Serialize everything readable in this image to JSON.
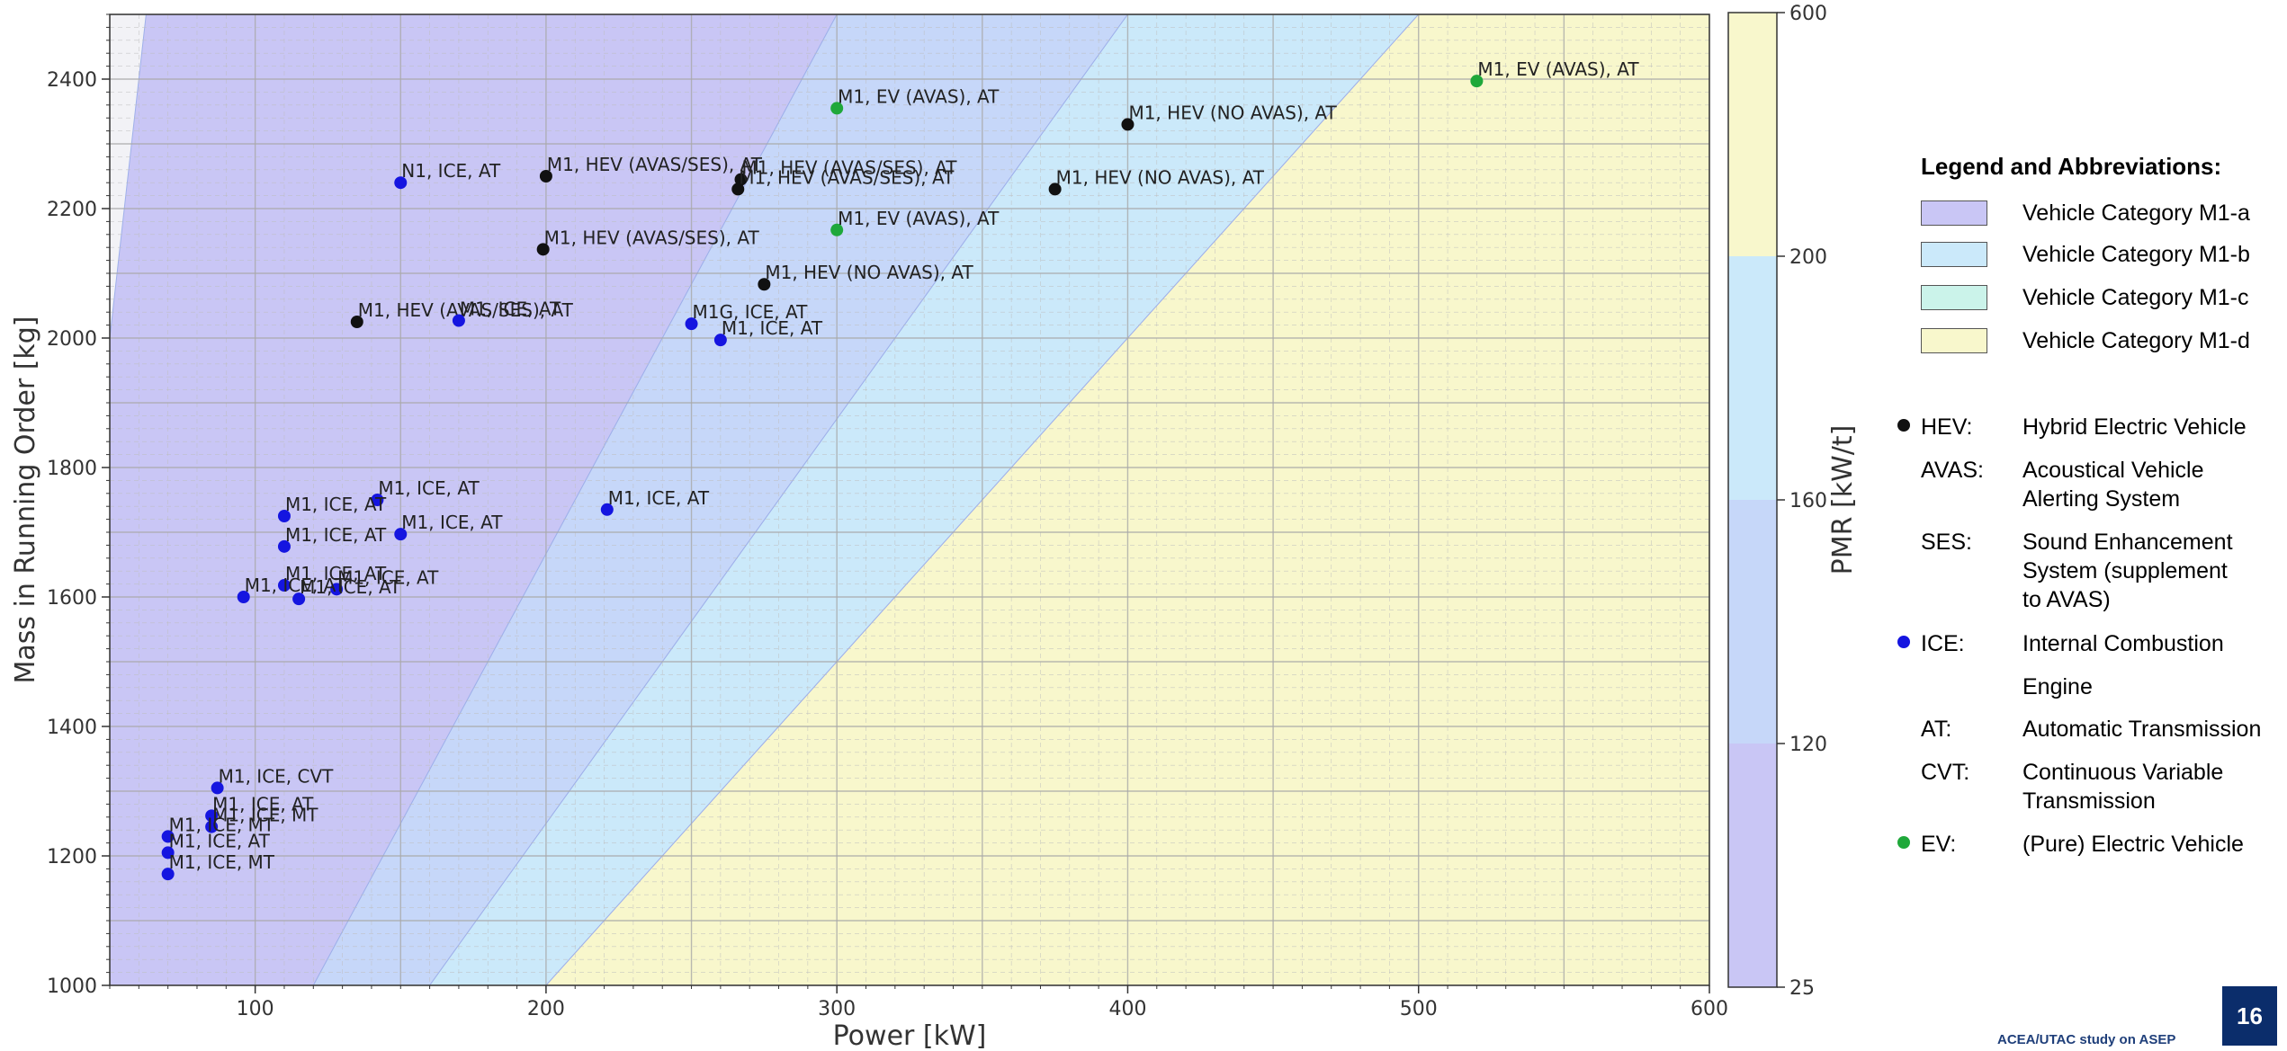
{
  "chart_data": {
    "type": "scatter",
    "xlabel": "Power [kW]",
    "ylabel": "Mass in Running Order [kg]",
    "xlim": [
      50,
      600
    ],
    "ylim": [
      1000,
      2500
    ],
    "xticks": [
      "100",
      "200",
      "300",
      "400",
      "500",
      "600"
    ],
    "yticks": [
      "1000",
      "1200",
      "1400",
      "1600",
      "1800",
      "2000",
      "2200",
      "2400"
    ],
    "grid": true,
    "regions": [
      {
        "category": "M1-a",
        "pmr_max": 120,
        "color": "#c9c6f5"
      },
      {
        "category": "M1-b",
        "pmr_min": 120,
        "pmr_max": 160,
        "color": "#c6d7f9"
      },
      {
        "category": "M1-c",
        "pmr_min": 160,
        "pmr_max": 200,
        "color": "#cbe9fa"
      },
      {
        "category": "M1-d",
        "pmr_min": 200,
        "color": "#f8f7cc"
      }
    ],
    "colorbar": {
      "label": "PMR [kW/t]",
      "ticks": [
        "25",
        "120",
        "160",
        "200",
        "600"
      ],
      "bands": [
        {
          "from": 25,
          "to": 120,
          "color": "#c9c6f5"
        },
        {
          "from": 120,
          "to": 160,
          "color": "#c6d7f9"
        },
        {
          "from": 160,
          "to": 200,
          "color": "#cbe9fa"
        },
        {
          "from": 200,
          "to": 600,
          "color": "#f8f7cc"
        }
      ]
    },
    "series": [
      {
        "name": "HEV",
        "color": "#111111",
        "points": [
          {
            "x": 400,
            "y": 2330,
            "label": "M1, HEV (NO AVAS), AT"
          },
          {
            "x": 200,
            "y": 2250,
            "label": "M1, HEV (AVAS/SES), AT"
          },
          {
            "x": 267,
            "y": 2245,
            "label": "M1, HEV (AVAS/SES), AT"
          },
          {
            "x": 266,
            "y": 2230,
            "label": "M1, HEV (AVAS/SES), AT"
          },
          {
            "x": 375,
            "y": 2230,
            "label": "M1, HEV (NO AVAS), AT"
          },
          {
            "x": 199,
            "y": 2137,
            "label": "M1, HEV (AVAS/SES), AT"
          },
          {
            "x": 275,
            "y": 2083,
            "label": "M1, HEV (NO AVAS), AT"
          },
          {
            "x": 135,
            "y": 2025,
            "label": "M1, HEV (AVAS/SES), AT"
          }
        ]
      },
      {
        "name": "EV",
        "color": "#1fa83a",
        "points": [
          {
            "x": 520,
            "y": 2397,
            "label": "M1, EV (AVAS), AT"
          },
          {
            "x": 300,
            "y": 2355,
            "label": "M1, EV (AVAS), AT"
          },
          {
            "x": 300,
            "y": 2167,
            "label": "M1, EV (AVAS), AT"
          }
        ]
      },
      {
        "name": "ICE",
        "color": "#1515e0",
        "points": [
          {
            "x": 150,
            "y": 2240,
            "label": "N1, ICE, AT"
          },
          {
            "x": 170,
            "y": 2027,
            "label": "M1, ICE, AT"
          },
          {
            "x": 250,
            "y": 2022,
            "label": "M1G, ICE, AT"
          },
          {
            "x": 260,
            "y": 1997,
            "label": "M1, ICE, AT"
          },
          {
            "x": 142,
            "y": 1750,
            "label": "M1, ICE, AT"
          },
          {
            "x": 221,
            "y": 1735,
            "label": "M1, ICE, AT"
          },
          {
            "x": 110,
            "y": 1725,
            "label": "M1, ICE, AT"
          },
          {
            "x": 150,
            "y": 1697,
            "label": "M1, ICE, AT"
          },
          {
            "x": 110,
            "y": 1678,
            "label": "M1, ICE, AT"
          },
          {
            "x": 110,
            "y": 1618,
            "label": "M1, ICE, AT"
          },
          {
            "x": 128,
            "y": 1612,
            "label": "M1, ICE, AT"
          },
          {
            "x": 96,
            "y": 1600,
            "label": "M1, ICE, AT"
          },
          {
            "x": 115,
            "y": 1597,
            "label": "M1, ICE, AT"
          },
          {
            "x": 87,
            "y": 1305,
            "label": "M1, ICE, CVT"
          },
          {
            "x": 85,
            "y": 1262,
            "label": "M1, ICE, AT"
          },
          {
            "x": 85,
            "y": 1245,
            "label": "M1, ICE, MT"
          },
          {
            "x": 70,
            "y": 1230,
            "label": "M1, ICE, MT"
          },
          {
            "x": 70,
            "y": 1205,
            "label": "M1, ICE, AT"
          },
          {
            "x": 70,
            "y": 1172,
            "label": "M1, ICE, MT"
          }
        ]
      }
    ]
  },
  "legend": {
    "title": "Legend and Abbreviations:",
    "categories": [
      {
        "label": "Vehicle Category M1-a",
        "color": "#c9c6f5"
      },
      {
        "label": "Vehicle Category M1-b",
        "color": "#c6d7f9"
      },
      {
        "label": "Vehicle Category M1-c",
        "color": "#cbf3ea"
      },
      {
        "label": "Vehicle Category M1-d",
        "color": "#f8f7cc"
      }
    ],
    "abbreviations": {
      "hev": {
        "key": "HEV:",
        "text": "Hybrid Electric Vehicle",
        "color": "#111111"
      },
      "avas": {
        "key": "AVAS:",
        "text": "Acoustical Vehicle Alerting System"
      },
      "ses": {
        "key": "SES:",
        "text": "Sound Enhancement System (supplement to AVAS)"
      },
      "ice": {
        "key": "ICE:",
        "text": "Internal Combustion",
        "text2": "Engine",
        "color": "#1515e0"
      },
      "at": {
        "key": "AT:",
        "text": "Automatic Transmission"
      },
      "cvt": {
        "key": "CVT:",
        "text": "Continuous Variable Transmission"
      },
      "ev": {
        "key": "EV:",
        "text": "(Pure) Electric Vehicle",
        "color": "#1fa83a"
      }
    }
  },
  "footer": {
    "text": "ACEA/UTAC study on ASEP",
    "page": "16"
  }
}
